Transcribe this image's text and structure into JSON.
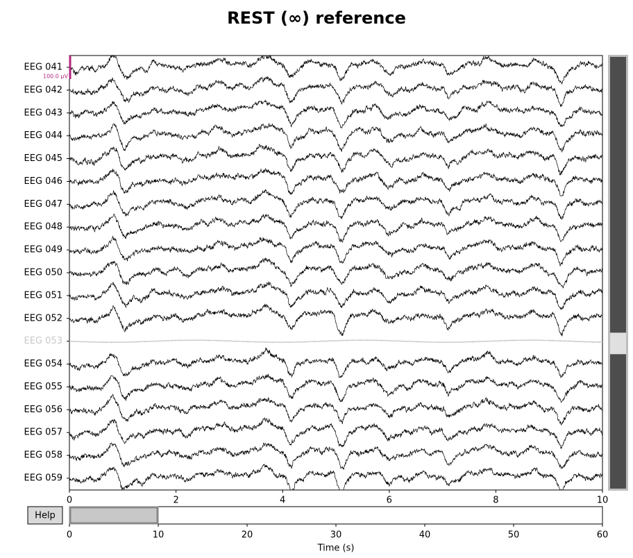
{
  "title": "REST (∞) reference",
  "channels": [
    {
      "name": "EEG 041",
      "bad": false
    },
    {
      "name": "EEG 042",
      "bad": false
    },
    {
      "name": "EEG 043",
      "bad": false
    },
    {
      "name": "EEG 044",
      "bad": false
    },
    {
      "name": "EEG 045",
      "bad": false
    },
    {
      "name": "EEG 046",
      "bad": false
    },
    {
      "name": "EEG 047",
      "bad": false
    },
    {
      "name": "EEG 048",
      "bad": false
    },
    {
      "name": "EEG 049",
      "bad": false
    },
    {
      "name": "EEG 050",
      "bad": false
    },
    {
      "name": "EEG 051",
      "bad": false
    },
    {
      "name": "EEG 052",
      "bad": false
    },
    {
      "name": "EEG 053",
      "bad": true
    },
    {
      "name": "EEG 054",
      "bad": false
    },
    {
      "name": "EEG 055",
      "bad": false
    },
    {
      "name": "EEG 056",
      "bad": false
    },
    {
      "name": "EEG 057",
      "bad": false
    },
    {
      "name": "EEG 058",
      "bad": false
    },
    {
      "name": "EEG 059",
      "bad": false
    }
  ],
  "trace_color": "#000000",
  "bad_color": "#c8c8c8",
  "scale_label": "100.0 µV",
  "scale_color": "#b0267d",
  "time_axis": {
    "xlim": [
      0,
      10
    ],
    "xticks": [
      0,
      2,
      4,
      6,
      8,
      10
    ]
  },
  "overview": {
    "xlim": [
      0,
      60
    ],
    "xticks": [
      0,
      10,
      20,
      30,
      40,
      50,
      60
    ],
    "window": [
      0,
      10
    ],
    "xlabel": "Time (s)"
  },
  "help_button": "Help"
}
